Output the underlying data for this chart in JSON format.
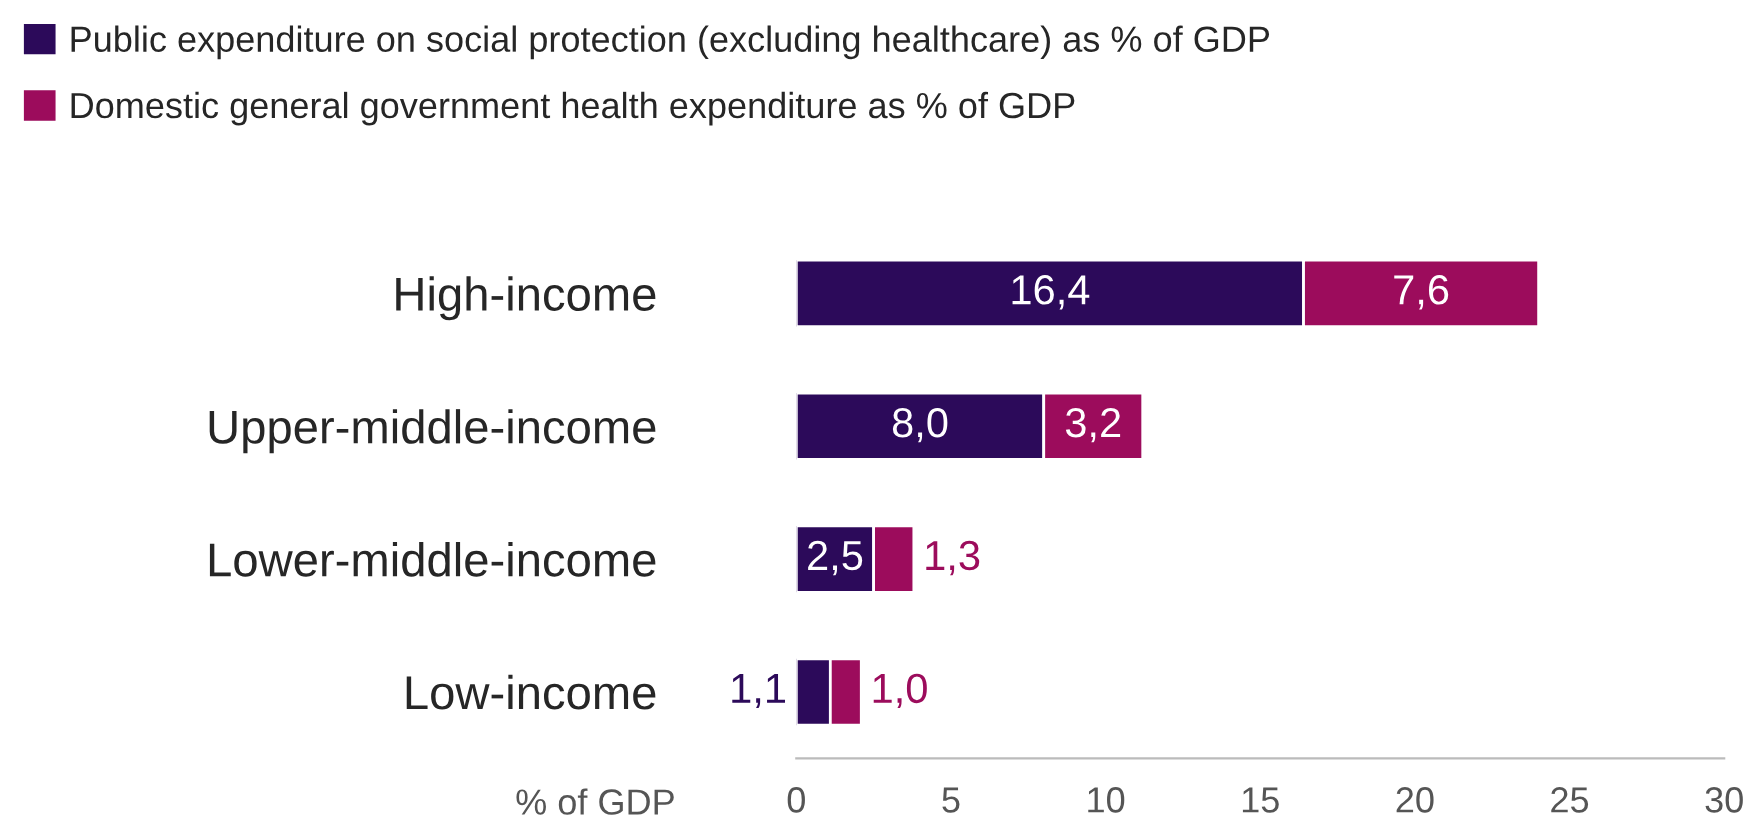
{
  "chart_data": {
    "type": "bar",
    "orientation": "horizontal",
    "stacked": true,
    "categories": [
      "High-income",
      "Upper-middle-income",
      "Lower-middle-income",
      "Low-income"
    ],
    "series": [
      {
        "name": "Public expenditure on social protection (excluding healthcare) as % of GDP",
        "color": "#2c0a5a",
        "values": [
          16.4,
          8.0,
          2.5,
          1.1
        ],
        "value_labels": [
          "16,4",
          "8,0",
          "2,5",
          "1,1"
        ]
      },
      {
        "name": "Domestic general government health expenditure as % of GDP",
        "color": "#9c0c5c",
        "values": [
          7.6,
          3.2,
          1.3,
          1.0
        ],
        "value_labels": [
          "7,6",
          "3,2",
          "1,3",
          "1,0"
        ]
      }
    ],
    "xlabel": "% of GDP",
    "xlim": [
      0,
      30
    ],
    "xticks": [
      0,
      5,
      10,
      15,
      20,
      25,
      30
    ],
    "legend": "top left",
    "grid": false
  }
}
